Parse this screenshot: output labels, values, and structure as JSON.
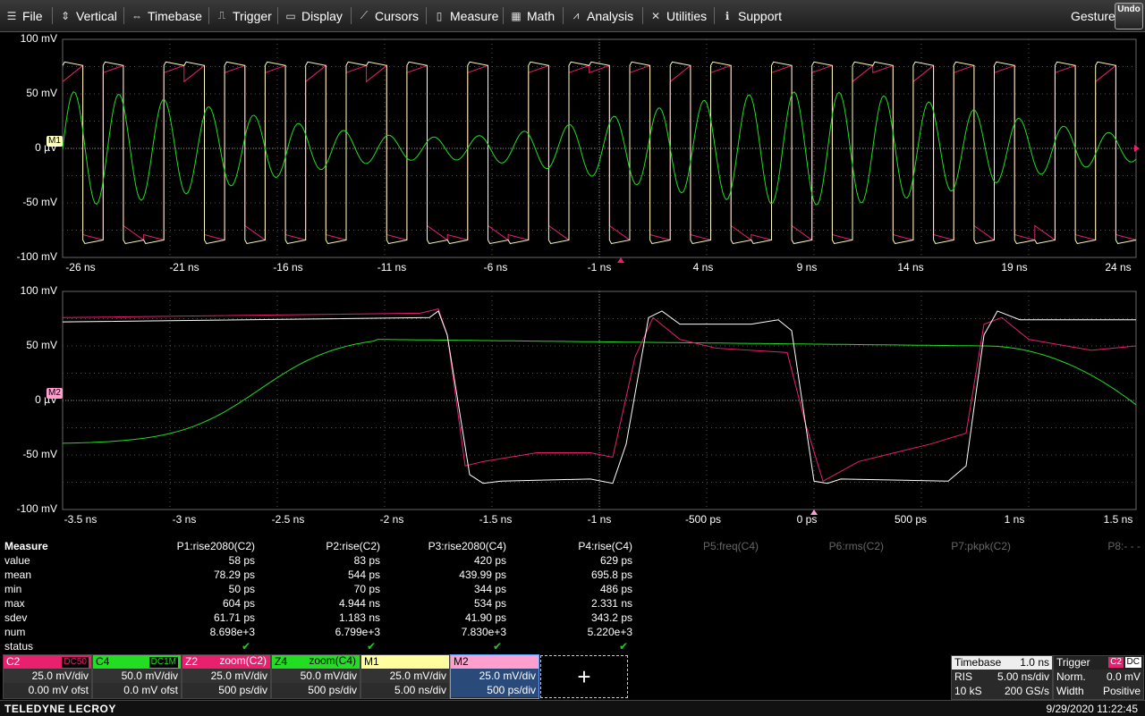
{
  "menu": [
    {
      "label": "File",
      "icon": "file-icon",
      "glyph": "☰"
    },
    {
      "label": "Vertical",
      "icon": "vertical-arrows-icon",
      "glyph": "⇕"
    },
    {
      "label": "Timebase",
      "icon": "horizontal-arrows-icon",
      "glyph": "⇔"
    },
    {
      "label": "Trigger",
      "icon": "trigger-icon",
      "glyph": "⎍"
    },
    {
      "label": "Display",
      "icon": "display-icon",
      "glyph": "▭"
    },
    {
      "label": "Cursors",
      "icon": "cursors-icon",
      "glyph": "⟋"
    },
    {
      "label": "Measure",
      "icon": "measure-icon",
      "glyph": "▯"
    },
    {
      "label": "Math",
      "icon": "math-icon",
      "glyph": "▦"
    },
    {
      "label": "Analysis",
      "icon": "analysis-icon",
      "glyph": "⩘"
    },
    {
      "label": "Utilities",
      "icon": "utilities-icon",
      "glyph": "✕"
    },
    {
      "label": "Support",
      "icon": "support-icon",
      "glyph": "ℹ"
    }
  ],
  "gesture_label": "Gesture",
  "undo_label": "Undo",
  "top_grid": {
    "y_ticks": [
      "100 mV",
      "50 mV",
      "0 µV",
      "-50 mV",
      "-100 mV"
    ],
    "x_ticks": [
      "-26 ns",
      "-21 ns",
      "-16 ns",
      "-11 ns",
      "-6 ns",
      "-1 ns",
      "4 ns",
      "9 ns",
      "14 ns",
      "19 ns",
      "24 ns"
    ],
    "marker": "M1"
  },
  "bottom_grid": {
    "y_ticks": [
      "100 mV",
      "50 mV",
      "0 µV",
      "-50 mV",
      "-100 mV"
    ],
    "x_ticks": [
      "-3.5 ns",
      "-3 ns",
      "-2.5 ns",
      "-2 ns",
      "-1.5 ns",
      "-1 ns",
      "-500 ps",
      "0 ps",
      "500 ps",
      "1 ns",
      "1.5 ns"
    ],
    "marker": "M2"
  },
  "colors": {
    "c2": "#e8206e",
    "c4": "#22dd22",
    "m1": "#ffffc0",
    "m2": "#ff9fcf",
    "grid": "#555555"
  },
  "measure": {
    "title": "Measure",
    "params": [
      {
        "name": "P1:rise2080(C2)",
        "value": "58 ps",
        "mean": "78.29 ps",
        "min": "50 ps",
        "max": "604 ps",
        "sdev": "61.71 ps",
        "num": "8.698e+3",
        "status": "✔"
      },
      {
        "name": "P2:rise(C2)",
        "value": "83 ps",
        "mean": "544 ps",
        "min": "70 ps",
        "max": "4.944 ns",
        "sdev": "1.183 ns",
        "num": "6.799e+3",
        "status": "✔"
      },
      {
        "name": "P3:rise2080(C4)",
        "value": "420 ps",
        "mean": "439.99 ps",
        "min": "344 ps",
        "max": "534 ps",
        "sdev": "41.90 ps",
        "num": "7.830e+3",
        "status": "✔"
      },
      {
        "name": "P4:rise(C4)",
        "value": "629 ps",
        "mean": "695.8 ps",
        "min": "486 ps",
        "max": "2.331 ns",
        "sdev": "343.2 ps",
        "num": "5.220e+3",
        "status": "✔"
      }
    ],
    "inactive": [
      "P5:freq(C4)",
      "P6:rms(C2)",
      "P7:pkpk(C2)",
      "P8:- - -"
    ],
    "row_labels": [
      "value",
      "mean",
      "min",
      "max",
      "sdev",
      "num",
      "status"
    ]
  },
  "channels": [
    {
      "name": "C2",
      "tag": "DC50",
      "line1": "25.0 mV/div",
      "line2": "0.00 mV ofst",
      "color": "#e8206e",
      "text": "#fff"
    },
    {
      "name": "C4",
      "tag": "DC1M",
      "line1": "50.0 mV/div",
      "line2": "0.0 mV ofst",
      "color": "#22dd22",
      "text": "#000"
    },
    {
      "name": "Z2",
      "tag": "zoom(C2)",
      "line1": "25.0 mV/div",
      "line2": "500 ps/div",
      "color": "#e8206e",
      "text": "#fff"
    },
    {
      "name": "Z4",
      "tag": "zoom(C4)",
      "line1": "50.0 mV/div",
      "line2": "500 ps/div",
      "color": "#22dd22",
      "text": "#000"
    },
    {
      "name": "M1",
      "tag": "",
      "line1": "25.0 mV/div",
      "line2": "5.00 ns/div",
      "color": "#ffffa0",
      "text": "#000"
    },
    {
      "name": "M2",
      "tag": "",
      "line1": "25.0 mV/div",
      "line2": "500 ps/div",
      "color": "#ff9fcf",
      "text": "#000"
    }
  ],
  "add_label": "+",
  "timebase": {
    "title": "Timebase",
    "delay": "1.0 ns",
    "mode": "RIS",
    "div": "5.00 ns/div",
    "samples": "10 kS",
    "rate": "200 GS/s"
  },
  "trigger": {
    "title": "Trigger",
    "tag1": "C2",
    "tag2": "DC",
    "type": "Norm.",
    "level": "0.0 mV",
    "kind": "Width",
    "slope": "Positive"
  },
  "brand": "TELEDYNE LECROY",
  "datetime": "9/29/2020 11:22:45"
}
